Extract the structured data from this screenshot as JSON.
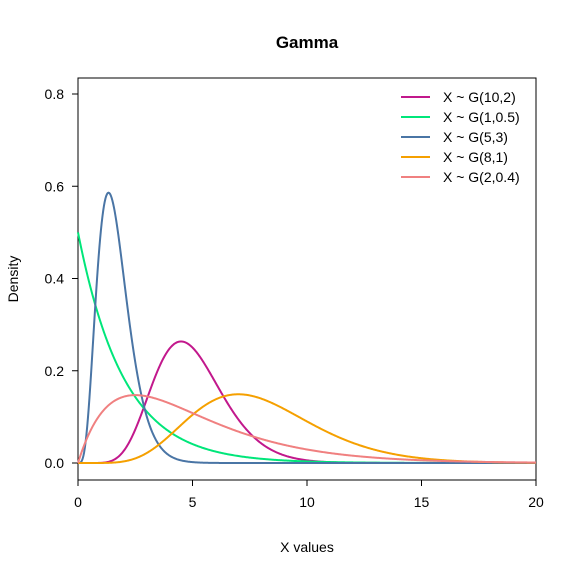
{
  "chart_data": {
    "type": "line",
    "title": "Gamma",
    "xlabel": "X values",
    "ylabel": "Density",
    "xlim": [
      0,
      20
    ],
    "ylim": [
      0,
      0.8
    ],
    "x_ticks": [
      0,
      5,
      10,
      15,
      20
    ],
    "y_ticks": [
      0.0,
      0.2,
      0.4,
      0.6,
      0.8
    ],
    "x_tick_labels": [
      "0",
      "5",
      "10",
      "15",
      "20"
    ],
    "y_tick_labels": [
      "0.0",
      "0.2",
      "0.4",
      "0.6",
      "0.8"
    ],
    "grid": false,
    "legend_position": "top-right",
    "series": [
      {
        "name": "X ~ G(10,2)",
        "shape": 10,
        "rate": 2,
        "color": "#C2188C",
        "x": [
          0,
          1,
          2,
          3,
          4,
          4.5,
          5,
          6,
          7,
          8,
          9,
          10,
          12,
          15,
          20
        ],
        "y": [
          0,
          0.0,
          0.0048,
          0.0548,
          0.2023,
          0.262,
          0.2252,
          0.0873,
          0.0222,
          0.0044,
          0.0006,
          0.0001,
          0,
          0,
          0
        ]
      },
      {
        "name": "X ~ G(1,0.5)",
        "shape": 1,
        "rate": 0.5,
        "color": "#00E67A",
        "x": [
          0,
          0.5,
          1,
          2,
          3,
          4,
          5,
          6,
          8,
          10,
          15,
          20
        ],
        "y": [
          0.5,
          0.48,
          0.42,
          0.3,
          0.2,
          0.13,
          0.08,
          0.05,
          0.02,
          0.01,
          0.0,
          0.0
        ]
      },
      {
        "name": "X ~ G(5,3)",
        "shape": 5,
        "rate": 3,
        "color": "#4A75A5",
        "x": [
          0,
          0.5,
          1,
          1.33,
          2,
          3,
          4,
          5,
          6,
          8,
          20
        ],
        "y": [
          0,
          0.16,
          0.5,
          0.58,
          0.36,
          0.05,
          0.003,
          0.0001,
          0,
          0,
          0
        ]
      },
      {
        "name": "X ~ G(8,1)",
        "shape": 8,
        "rate": 1,
        "color": "#F5A000",
        "x": [
          0,
          2,
          4,
          6,
          7,
          8,
          10,
          12,
          14,
          16,
          18,
          20
        ],
        "y": [
          0,
          0.003,
          0.06,
          0.138,
          0.149,
          0.14,
          0.09,
          0.044,
          0.018,
          0.006,
          0.002,
          0.0005
        ]
      },
      {
        "name": "X ~ G(2,0.4)",
        "shape": 2,
        "rate": 0.4,
        "color": "#F08080",
        "x": [
          0,
          1,
          2,
          2.5,
          3,
          4,
          6,
          8,
          10,
          12,
          15,
          20
        ],
        "y": [
          0,
          0.107,
          0.144,
          0.147,
          0.145,
          0.129,
          0.087,
          0.052,
          0.029,
          0.016,
          0.006,
          0.001
        ]
      }
    ]
  }
}
